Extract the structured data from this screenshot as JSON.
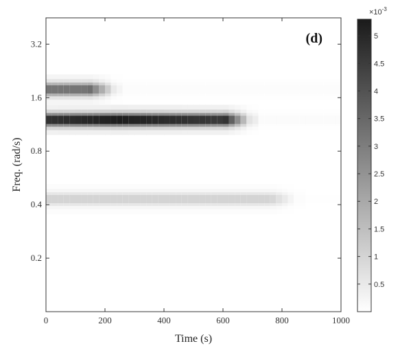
{
  "chart_data": {
    "type": "heatmap",
    "panel_label": "(d)",
    "xlabel": "Time (s)",
    "ylabel": "Freq. (rad/s)",
    "xlim": [
      0,
      1000
    ],
    "x_ticks": [
      0,
      200,
      400,
      600,
      800,
      1000
    ],
    "x_tick_labels": [
      "0",
      "200",
      "400",
      "600",
      "800",
      "1000"
    ],
    "y_tick_labels": [
      "0.2",
      "0.4",
      "0.8",
      "1.6",
      "3.2"
    ],
    "y_ticks": [
      0.2,
      0.4,
      0.8,
      1.6,
      3.2
    ],
    "y_scale": "log2",
    "ylim": [
      0.1,
      4.5
    ],
    "colormap": "gray_reversed",
    "colorbar": {
      "range": [
        0,
        0.0053
      ],
      "ticks": [
        0.5,
        1,
        1.5,
        2,
        2.5,
        3,
        3.5,
        4,
        4.5,
        5
      ],
      "tick_labels": [
        "0.5",
        "1",
        "1.5",
        "2",
        "2.5",
        "3",
        "3.5",
        "4",
        "4.5",
        "5"
      ],
      "multiplier_base": "×10",
      "multiplier_exponent": "-3"
    },
    "bands": [
      {
        "freq": 1.78,
        "t_start": 0,
        "t_end": 230,
        "peak": 3.2,
        "fade_end": 250
      },
      {
        "freq": 1.2,
        "t_start": 0,
        "t_end": 690,
        "peak": 5.2,
        "fade_end": 720,
        "peak_time": 250
      },
      {
        "freq": 0.43,
        "t_start": 0,
        "t_end": 840,
        "peak": 1.0,
        "fade_end": 880
      }
    ]
  },
  "colors": {
    "axis": "#333333",
    "background": "#ffffff",
    "max_shade": "#1a1a1a"
  }
}
